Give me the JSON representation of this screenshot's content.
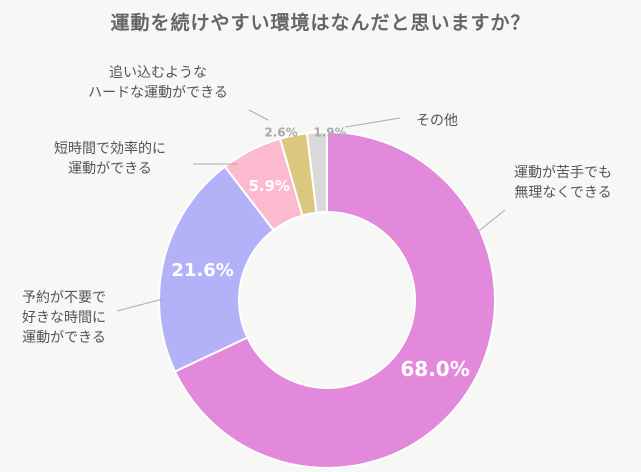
{
  "title": "運動を続けやすい環境はなんだと思いますか？",
  "chart_data": {
    "type": "pie",
    "title": "運動を続けやすい環境はなんだと思いますか？",
    "donut": true,
    "slices": [
      {
        "label": [
          "運動が苦手でも",
          "無理なくできる"
        ],
        "value": 68.0,
        "value_label": "68.0%",
        "color": "#e389dc"
      },
      {
        "label": [
          "予約が不要で",
          "好きな時間に",
          "運動ができる"
        ],
        "value": 21.6,
        "value_label": "21.6%",
        "color": "#b3b1f7"
      },
      {
        "label": [
          "短時間で効率的に",
          "運動ができる"
        ],
        "value": 5.9,
        "value_label": "5.9%",
        "color": "#fbbad0"
      },
      {
        "label": [
          "追い込むような",
          "ハードな運動ができる"
        ],
        "value": 2.6,
        "value_label": "2.6%",
        "color": "#dcc77e"
      },
      {
        "label": [
          "その他"
        ],
        "value": 1.9,
        "value_label": "1.9%",
        "color": "#d9d9d9"
      }
    ]
  }
}
